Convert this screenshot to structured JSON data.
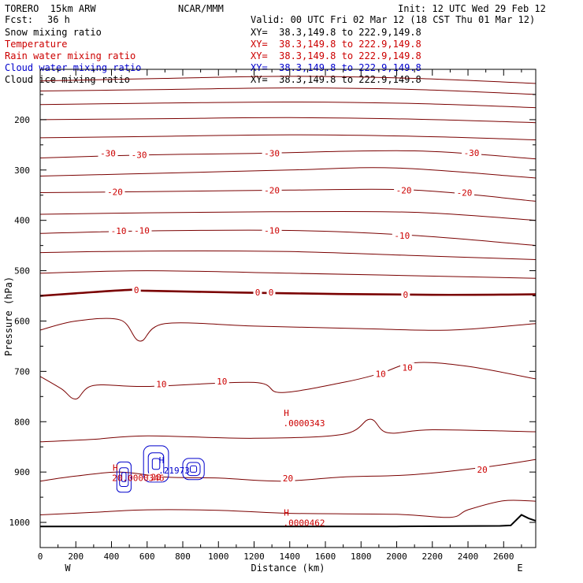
{
  "header": {
    "model": "TORERO  15km ARW",
    "center": "NCAR/MMM",
    "init": "Init: 12 UTC Wed 29 Feb 12",
    "fcst_label": "Fcst:",
    "fcst_value": "36 h",
    "valid": "Valid: 00 UTC Fri 02 Mar 12 (18 CST Thu 01 Mar 12)"
  },
  "fields": [
    {
      "name": "Snow mixing ratio",
      "color": "#000000",
      "xy": "XY=  38.3,149.8 to 222.9,149.8"
    },
    {
      "name": "Temperature",
      "color": "#cc0000",
      "xy": "XY=  38.3,149.8 to 222.9,149.8"
    },
    {
      "name": "Rain water mixing ratio",
      "color": "#cc0000",
      "xy": "XY=  38.3,149.8 to 222.9,149.8"
    },
    {
      "name": "Cloud water mixing ratio",
      "color": "#0000cc",
      "xy": "XY=  38.3,149.8 to 222.9,149.8"
    },
    {
      "name": "Cloud ice mixing ratio",
      "color": "#000000",
      "xy": "XY=  38.3,149.8 to 222.9,149.8"
    }
  ],
  "colors": {
    "contour": "#7a0000",
    "label": "#cc0000",
    "cloud": "#0000cc",
    "terrain": "#000000"
  },
  "chart_data": {
    "type": "cross-section",
    "xlabel": "Distance (km)",
    "ylabel": "Pressure (hPa)",
    "xlim": [
      0,
      2780
    ],
    "ylim": [
      1050,
      100
    ],
    "x_ticks": [
      0,
      200,
      400,
      600,
      800,
      1000,
      1200,
      1400,
      1600,
      1800,
      2000,
      2200,
      2400,
      2600
    ],
    "y_ticks": [
      200,
      300,
      400,
      500,
      600,
      700,
      800,
      900,
      1000
    ],
    "x_tick_labels": [
      "0",
      "200",
      "400",
      "600",
      "800",
      "1000",
      "1200",
      "1400",
      "1600",
      "1800",
      "2000",
      "2200",
      "2400",
      "2600"
    ],
    "y_tick_labels": [
      "200",
      "300",
      "400",
      "500",
      "600",
      "700",
      "800",
      "900",
      "1000"
    ],
    "end_labels": {
      "left": "W",
      "right": "E"
    },
    "contour_interval_C": 5,
    "isotherms": [
      {
        "x": [
          0,
          700,
          1400,
          2100,
          2780
        ],
        "p": [
          123,
          118,
          114,
          118,
          128
        ]
      },
      {
        "x": [
          0,
          700,
          1400,
          2100,
          2780
        ],
        "p": [
          143,
          140,
          137,
          140,
          150
        ]
      },
      {
        "x": [
          0,
          700,
          1400,
          2100,
          2780
        ],
        "p": [
          170,
          167,
          165,
          168,
          176
        ]
      },
      {
        "x": [
          0,
          700,
          1400,
          2100,
          2780
        ],
        "p": [
          200,
          198,
          196,
          199,
          206
        ]
      },
      {
        "x": [
          0,
          700,
          1400,
          2100,
          2780
        ],
        "p": [
          236,
          233,
          230,
          233,
          240
        ]
      },
      {
        "x": [
          0,
          600,
          1200,
          2100,
          2780
        ],
        "p": [
          276,
          270,
          267,
          262,
          278
        ]
      },
      {
        "x": [
          0,
          600,
          1400,
          2000,
          2780
        ],
        "p": [
          312,
          307,
          300,
          296,
          316
        ]
      },
      {
        "x": [
          0,
          600,
          1400,
          2100,
          2780
        ],
        "p": [
          345,
          343,
          340,
          340,
          362
        ]
      },
      {
        "x": [
          0,
          600,
          1300,
          2100,
          2780
        ],
        "p": [
          388,
          385,
          383,
          384,
          400
        ]
      },
      {
        "x": [
          0,
          600,
          1400,
          2100,
          2780
        ],
        "p": [
          426,
          421,
          420,
          430,
          450
        ]
      },
      {
        "x": [
          0,
          600,
          1400,
          2100,
          2780
        ],
        "p": [
          464,
          461,
          462,
          470,
          478
        ]
      },
      {
        "x": [
          0,
          600,
          1400,
          2100,
          2780
        ],
        "p": [
          505,
          500,
          505,
          510,
          515
        ]
      },
      {
        "x": [
          0,
          200,
          500,
          600,
          1400,
          2200,
          2780
        ],
        "p": [
          550,
          545,
          538,
          540,
          545,
          548,
          547
        ]
      },
      {
        "x": [
          0,
          200,
          450,
          560,
          700,
          1200,
          1800,
          2300,
          2780
        ],
        "p": [
          618,
          600,
          598,
          640,
          605,
          610,
          615,
          618,
          605
        ]
      },
      {
        "x": [
          0,
          120,
          200,
          300,
          600,
          1200,
          1350,
          1700,
          1900,
          2100,
          2400,
          2780
        ],
        "p": [
          710,
          735,
          755,
          728,
          730,
          722,
          742,
          722,
          705,
          683,
          690,
          715
        ]
      },
      {
        "x": [
          0,
          300,
          600,
          1200,
          1700,
          1850,
          1950,
          2200,
          2780
        ],
        "p": [
          840,
          835,
          828,
          833,
          825,
          795,
          822,
          816,
          820
        ]
      },
      {
        "x": [
          0,
          200,
          450,
          700,
          1000,
          1350,
          1700,
          2100,
          2500,
          2780
        ],
        "p": [
          918,
          908,
          900,
          910,
          912,
          918,
          910,
          905,
          890,
          875
        ]
      },
      {
        "x": [
          0,
          300,
          600,
          1000,
          1400,
          2000,
          2300,
          2400,
          2600,
          2780
        ],
        "p": [
          985,
          980,
          975,
          976,
          982,
          984,
          990,
          975,
          957,
          958
        ]
      }
    ],
    "isotherm_labels": [
      {
        "text": "-30",
        "x": 380,
        "p": 267,
        "value": -30
      },
      {
        "text": "-30",
        "x": 555,
        "p": 270,
        "value": -30
      },
      {
        "text": "-30",
        "x": 1300,
        "p": 267,
        "value": -30
      },
      {
        "text": "-30",
        "x": 2420,
        "p": 266,
        "value": -30
      },
      {
        "text": "-20",
        "x": 420,
        "p": 343,
        "value": -20
      },
      {
        "text": "-20",
        "x": 1300,
        "p": 340,
        "value": -20
      },
      {
        "text": "-20",
        "x": 2040,
        "p": 340,
        "value": -20
      },
      {
        "text": "-20",
        "x": 2380,
        "p": 345,
        "value": -20
      },
      {
        "text": "-10",
        "x": 440,
        "p": 421,
        "value": -10
      },
      {
        "text": "-10",
        "x": 570,
        "p": 420,
        "value": -10
      },
      {
        "text": "-10",
        "x": 1300,
        "p": 420,
        "value": -10
      },
      {
        "text": "-10",
        "x": 2030,
        "p": 430,
        "value": -10
      },
      {
        "text": "0",
        "x": 540,
        "p": 538,
        "value": 0
      },
      {
        "text": "0",
        "x": 1220,
        "p": 543,
        "value": 0
      },
      {
        "text": "0",
        "x": 1295,
        "p": 543,
        "value": 0
      },
      {
        "text": "0",
        "x": 2050,
        "p": 548,
        "value": 0
      },
      {
        "text": "10",
        "x": 680,
        "p": 725,
        "value": 10
      },
      {
        "text": "10",
        "x": 1020,
        "p": 720,
        "value": 10
      },
      {
        "text": "10",
        "x": 1910,
        "p": 705,
        "value": 10
      },
      {
        "text": "10",
        "x": 2060,
        "p": 692,
        "value": 10
      },
      {
        "text": "20",
        "x": 650,
        "p": 910,
        "value": 20
      },
      {
        "text": "20",
        "x": 1390,
        "p": 912,
        "value": 20
      },
      {
        "text": "20",
        "x": 2480,
        "p": 895,
        "value": 20
      }
    ],
    "freezing_level": {
      "x": [
        0,
        200,
        500,
        600,
        1400,
        2200,
        2780
      ],
      "p": [
        550,
        545,
        538,
        540,
        545,
        548,
        547
      ]
    },
    "terrain": {
      "x": [
        0,
        1000,
        2000,
        2580,
        2640,
        2700,
        2740,
        2780
      ],
      "p": [
        1008,
        1008,
        1008,
        1007,
        1006,
        985,
        992,
        997
      ]
    },
    "maxima": [
      {
        "mark": "H",
        "text": ".0000343",
        "x": 1390,
        "p": 795,
        "field": "Rain water mixing ratio"
      },
      {
        "mark": "H",
        "text": ".0000462",
        "x": 1390,
        "p": 993,
        "field": "Rain water mixing ratio"
      },
      {
        "mark": "H",
        "text": "20.0000346",
        "x": 430,
        "p": 904,
        "field": "Rain water mixing ratio"
      },
      {
        "mark": "H",
        "text": ".21973",
        "x": 690,
        "p": 889,
        "field": "Cloud water mixing ratio"
      }
    ],
    "cloud_water_regions": [
      {
        "x_range": [
          430,
          510
        ],
        "p_range": [
          880,
          940
        ]
      },
      {
        "x_range": [
          580,
          720
        ],
        "p_range": [
          848,
          920
        ]
      },
      {
        "x_range": [
          800,
          920
        ],
        "p_range": [
          873,
          915
        ]
      }
    ]
  }
}
